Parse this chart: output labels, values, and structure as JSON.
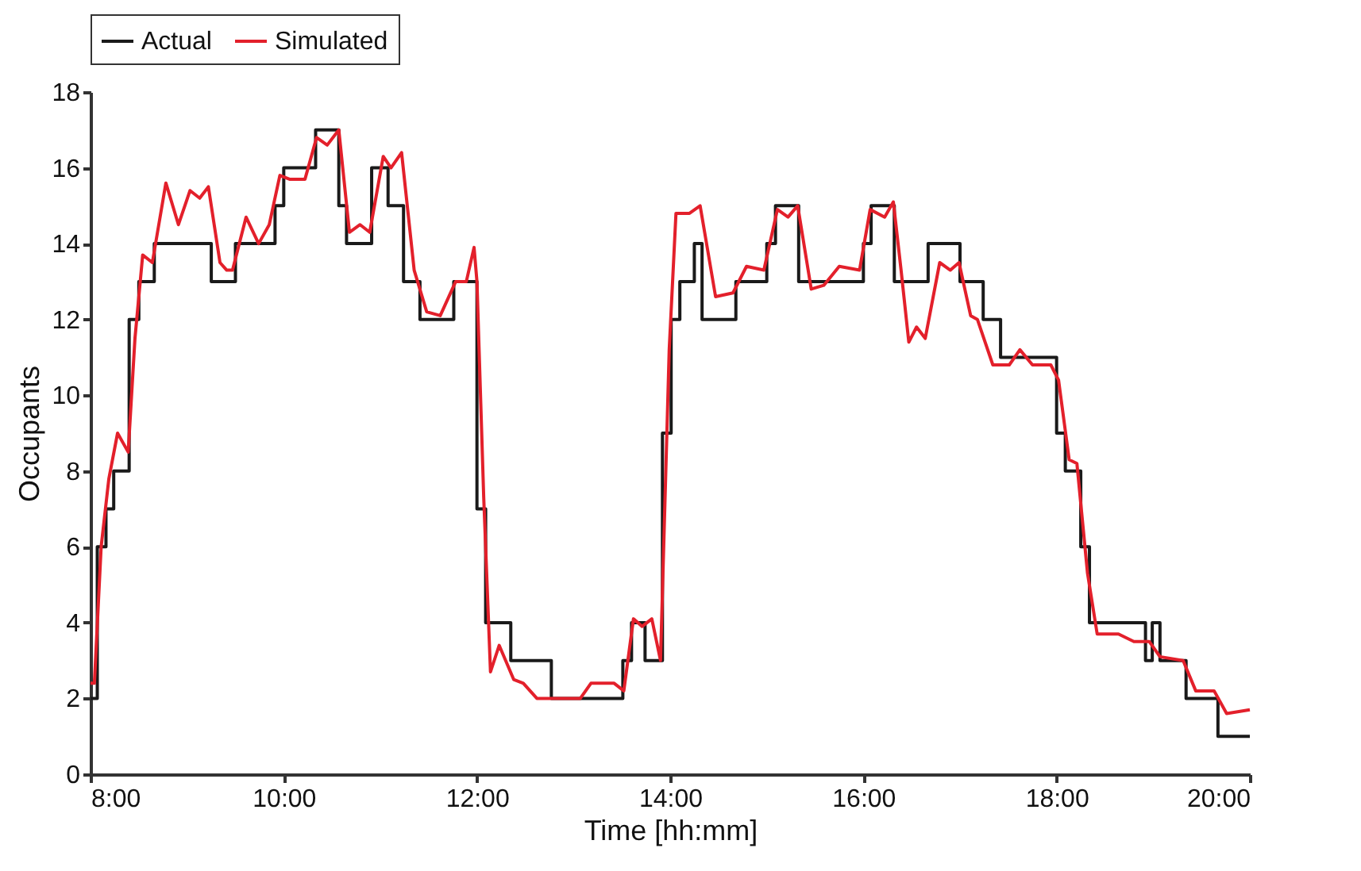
{
  "chart_data": {
    "type": "line",
    "xlabel": "Time [hh:mm]",
    "ylabel": "Occupants",
    "xlim": [
      8,
      20
    ],
    "ylim": [
      0,
      18
    ],
    "xticks": [
      {
        "value": 8,
        "label": "8:00"
      },
      {
        "value": 10,
        "label": "10:00"
      },
      {
        "value": 12,
        "label": "12:00"
      },
      {
        "value": 14,
        "label": "14:00"
      },
      {
        "value": 16,
        "label": "16:00"
      },
      {
        "value": 18,
        "label": "18:00"
      },
      {
        "value": 20,
        "label": "20:00"
      }
    ],
    "yticks": [
      0,
      2,
      4,
      6,
      8,
      10,
      12,
      14,
      16,
      18
    ],
    "legend": "top",
    "grid": false,
    "series": [
      {
        "name": "Actual",
        "type": "step",
        "color": "#1a1a1a",
        "x": [
          8.0,
          8.07,
          8.16,
          8.24,
          8.4,
          8.5,
          8.66,
          9.25,
          9.5,
          9.91,
          10.0,
          10.33,
          10.57,
          10.65,
          10.91,
          11.08,
          11.24,
          11.41,
          11.76,
          12.0,
          12.09,
          12.35,
          12.77,
          13.51,
          13.6,
          13.74,
          13.92,
          14.01,
          14.1,
          14.25,
          14.33,
          14.68,
          15.0,
          15.09,
          15.33,
          16.0,
          16.08,
          16.32,
          16.67,
          17.0,
          17.24,
          17.42,
          18.0,
          18.09,
          18.25,
          18.34,
          18.92,
          18.99,
          19.07,
          19.34,
          19.67,
          20.0
        ],
        "values": [
          2,
          6,
          7,
          8,
          12,
          13,
          14,
          13,
          14,
          15,
          16,
          17,
          15,
          14,
          16,
          15,
          13,
          12,
          13,
          7,
          4,
          3,
          2,
          3,
          4,
          3,
          9,
          12,
          13,
          14,
          12,
          13,
          14,
          15,
          13,
          14,
          15,
          13,
          14,
          13,
          12,
          11,
          9,
          8,
          6,
          4,
          3,
          4,
          3,
          2,
          1,
          1
        ]
      },
      {
        "name": "Simulated",
        "type": "line",
        "color": "#e3202b",
        "x": [
          8.0,
          8.04,
          8.11,
          8.19,
          8.28,
          8.39,
          8.46,
          8.54,
          8.64,
          8.78,
          8.91,
          9.03,
          9.13,
          9.22,
          9.34,
          9.41,
          9.47,
          9.61,
          9.74,
          9.85,
          9.96,
          10.06,
          10.22,
          10.34,
          10.45,
          10.57,
          10.68,
          10.79,
          10.89,
          11.03,
          11.11,
          11.22,
          11.35,
          11.48,
          11.62,
          11.78,
          11.89,
          11.97,
          12.0,
          12.07,
          12.14,
          12.23,
          12.38,
          12.48,
          12.62,
          13.07,
          13.18,
          13.42,
          13.52,
          13.62,
          13.71,
          13.81,
          13.9,
          13.99,
          14.06,
          14.2,
          14.31,
          14.47,
          14.65,
          14.79,
          14.97,
          15.11,
          15.22,
          15.32,
          15.46,
          15.59,
          15.75,
          15.96,
          16.07,
          16.22,
          16.31,
          16.39,
          16.47,
          16.55,
          16.64,
          16.79,
          16.9,
          16.99,
          17.11,
          17.18,
          17.34,
          17.51,
          17.62,
          17.75,
          17.94,
          18.02,
          18.13,
          18.21,
          18.32,
          18.42,
          18.64,
          18.8,
          18.96,
          19.07,
          19.31,
          19.44,
          19.63,
          19.76,
          20.0
        ],
        "values": [
          2.4,
          2.4,
          6.0,
          7.8,
          9.0,
          8.5,
          11.5,
          13.7,
          13.5,
          15.6,
          14.5,
          15.4,
          15.2,
          15.5,
          13.5,
          13.3,
          13.3,
          14.7,
          14.0,
          14.5,
          15.8,
          15.7,
          15.7,
          16.8,
          16.6,
          17.0,
          14.3,
          14.5,
          14.3,
          16.3,
          16.0,
          16.4,
          13.3,
          12.2,
          12.1,
          13.0,
          13.0,
          13.9,
          13.0,
          7.3,
          2.7,
          3.4,
          2.5,
          2.4,
          2.0,
          2.0,
          2.4,
          2.4,
          2.2,
          4.1,
          3.9,
          4.1,
          3.0,
          11.2,
          14.8,
          14.8,
          15.0,
          12.6,
          12.7,
          13.4,
          13.3,
          14.9,
          14.7,
          15.0,
          12.8,
          12.9,
          13.4,
          13.3,
          14.9,
          14.7,
          15.1,
          13.3,
          11.4,
          11.8,
          11.5,
          13.5,
          13.3,
          13.5,
          12.1,
          12.0,
          10.8,
          10.8,
          11.2,
          10.8,
          10.8,
          10.4,
          8.3,
          8.2,
          5.3,
          3.7,
          3.7,
          3.5,
          3.5,
          3.1,
          3.0,
          2.2,
          2.2,
          1.6,
          1.7
        ]
      }
    ]
  }
}
